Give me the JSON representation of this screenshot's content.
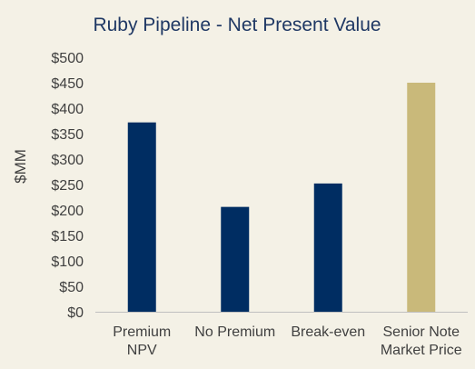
{
  "chart_data": {
    "type": "bar",
    "title": "Ruby Pipeline - Net Present Value",
    "ylabel": "$MM",
    "xlabel": "",
    "categories": [
      [
        "Premium",
        "NPV"
      ],
      [
        "No Premium"
      ],
      [
        "Break-even"
      ],
      [
        "Senior Note",
        "Market Price"
      ]
    ],
    "values": [
      372,
      206,
      252,
      450
    ],
    "bar_colors": [
      "#002d62",
      "#002d62",
      "#002d62",
      "#c9b97a"
    ],
    "ylim": [
      0,
      500
    ],
    "yticks": [
      0,
      50,
      100,
      150,
      200,
      250,
      300,
      350,
      400,
      450,
      500
    ],
    "ytick_labels": [
      "$0",
      "$50",
      "$100",
      "$150",
      "$200",
      "$250",
      "$300",
      "$350",
      "$400",
      "$450",
      "$500"
    ],
    "grid": false,
    "legend": "none",
    "axis_color": "#bfbfbf",
    "background": "#f4f1e6"
  }
}
